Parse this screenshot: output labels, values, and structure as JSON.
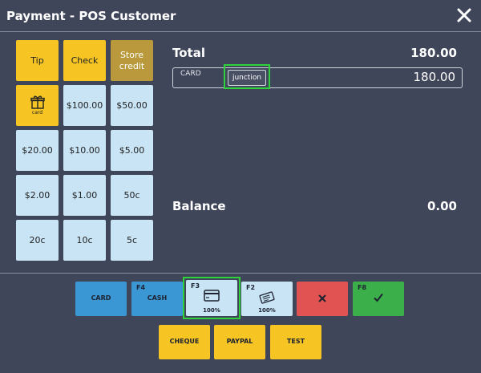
{
  "header": {
    "title": "Payment - POS Customer"
  },
  "keypad": {
    "tip": "Tip",
    "check": "Check",
    "store_credit": "Store credit",
    "gift_card": "card",
    "k100": "$100.00",
    "k50": "$50.00",
    "k20": "$20.00",
    "k10": "$10.00",
    "k5": "$5.00",
    "k2": "$2.00",
    "k1": "$1.00",
    "c50": "50c",
    "c20": "20c",
    "c10": "10c",
    "c5": "5c"
  },
  "summary": {
    "total_label": "Total",
    "total_value": "180.00",
    "balance_label": "Balance",
    "balance_value": "0.00"
  },
  "payment_line": {
    "method": "CARD",
    "button_label": "junction",
    "amount": "180.00"
  },
  "payment_buttons": {
    "card": "CARD",
    "cash_key": "F4",
    "cash": "CASH",
    "f3_key": "F3",
    "f3_pct": "100%",
    "f2_key": "F2",
    "f2_pct": "100%",
    "confirm_key": "F8",
    "cheque": "CHEQUE",
    "paypal": "PAYPAL",
    "test": "TEST"
  },
  "colors": {
    "background": "#404659",
    "yellow": "#f6c524",
    "light_blue": "#c8e4f5",
    "blue": "#3a97d4",
    "red": "#e15252",
    "green": "#3bb04a",
    "highlight": "#2fd23a"
  },
  "icons": {
    "close": "close-icon",
    "gift": "gift-icon",
    "credit_card": "credit-card-icon",
    "voucher": "voucher-icon",
    "cancel": "cancel-x-icon",
    "confirm": "checkmark-icon"
  }
}
